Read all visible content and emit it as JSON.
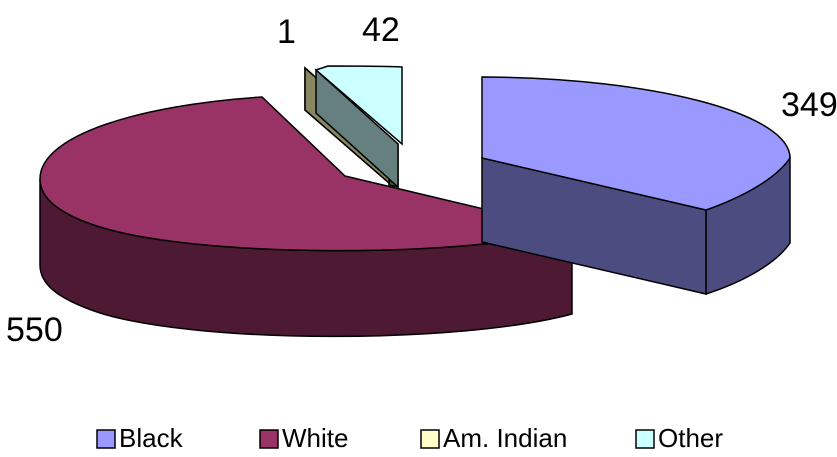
{
  "chart_data": {
    "type": "pie",
    "style": "3d-exploded",
    "categories": [
      "Black",
      "White",
      "Am. Indian",
      "Other"
    ],
    "values": [
      349,
      550,
      1,
      42
    ],
    "data_labels": [
      "349",
      "550",
      "1",
      "42"
    ],
    "colors": {
      "Black": {
        "top": "#9999ff",
        "side": "#4c4c80"
      },
      "White": {
        "top": "#993366",
        "side": "#4d1933"
      },
      "Am. Indian": {
        "top": "#878762",
        "side": "#4a4a33",
        "legend": "#ffffcc"
      },
      "Other": {
        "top": "#ccffff",
        "side": "#668080"
      }
    },
    "legend_position": "bottom"
  },
  "legend": {
    "items": [
      {
        "label": "Black"
      },
      {
        "label": "White"
      },
      {
        "label": "Am. Indian"
      },
      {
        "label": "Other"
      }
    ]
  }
}
